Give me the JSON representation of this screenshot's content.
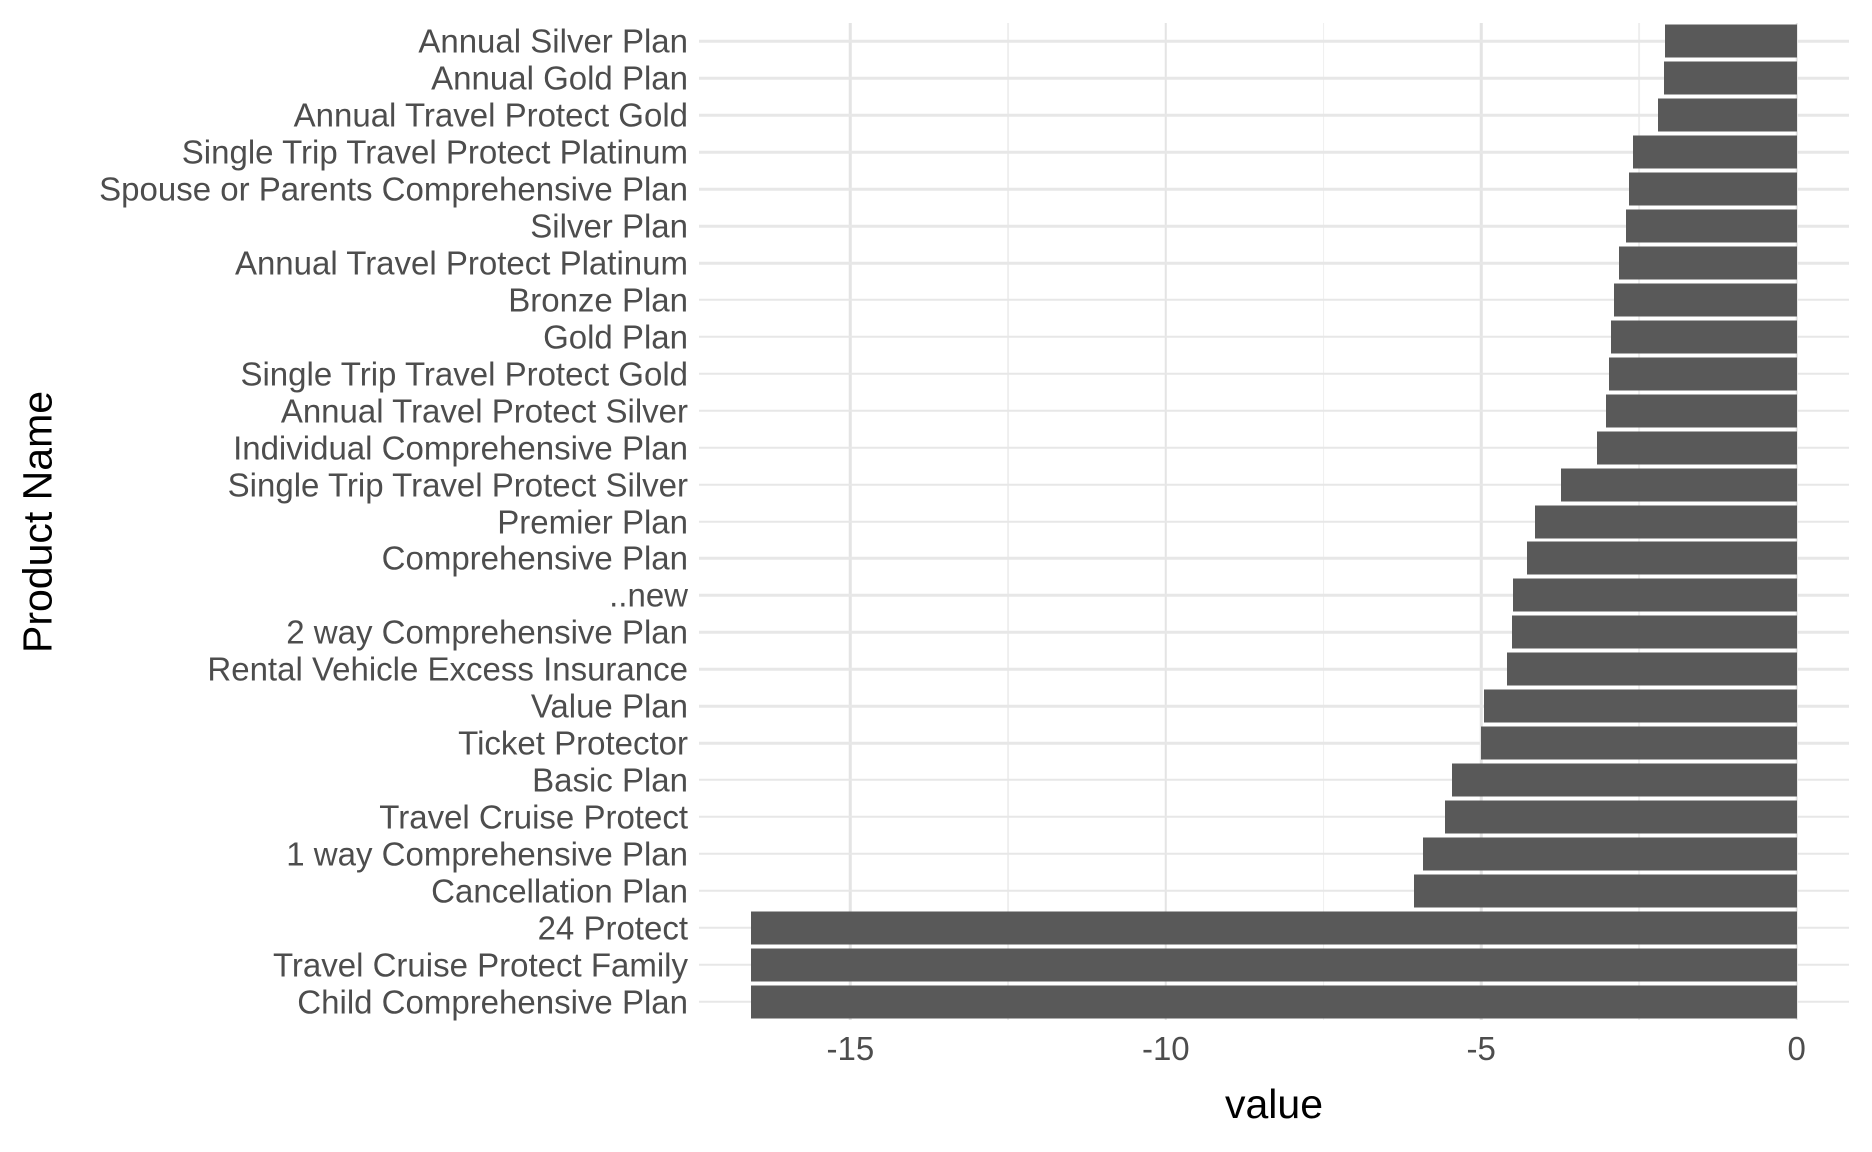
{
  "figure": {
    "background_color": "#ffffff",
    "bar_color": "#595959",
    "axis_text_color": "#4d4d4d",
    "axis_title_color": "#000000",
    "grid_major_color": "#e4e4e4",
    "grid_minor_color": "#eeeeee"
  },
  "chart_data": {
    "type": "bar",
    "orientation": "horizontal",
    "title": "",
    "xlabel": "value",
    "ylabel": "Product Name",
    "grid": "on",
    "legend": "none",
    "xlim": [
      -17.4,
      0.83
    ],
    "x_major_ticks": [
      -15,
      -10,
      -5,
      0
    ],
    "x_major_tick_labels": [
      "-15",
      "-10",
      "-5",
      "0"
    ],
    "x_minor_ticks": [
      -12.5,
      -7.5,
      -2.5
    ],
    "categories": [
      "Annual Silver Plan",
      "Annual Gold Plan",
      "Annual Travel Protect Gold",
      "Single Trip Travel Protect Platinum",
      "Spouse or Parents Comprehensive Plan",
      "Silver Plan",
      "Annual Travel Protect Platinum",
      "Bronze Plan",
      "Gold Plan",
      "Single Trip Travel Protect Gold",
      "Annual Travel Protect Silver",
      "Individual Comprehensive Plan",
      "Single Trip Travel Protect Silver",
      "Premier Plan",
      "Comprehensive Plan",
      "..new",
      "2 way Comprehensive Plan",
      "Rental Vehicle Excess Insurance",
      "Value Plan",
      "Ticket Protector",
      "Basic Plan",
      "Travel Cruise Protect",
      "1 way Comprehensive Plan",
      "Cancellation Plan",
      "24 Protect",
      "Travel Cruise Protect Family",
      "Child Comprehensive Plan"
    ],
    "values": [
      -2.08,
      -2.11,
      -2.2,
      -2.6,
      -2.65,
      -2.7,
      -2.81,
      -2.9,
      -2.94,
      -2.97,
      -3.02,
      -3.16,
      -3.74,
      -4.14,
      -4.27,
      -4.49,
      -4.51,
      -4.59,
      -4.95,
      -5.0,
      -5.47,
      -5.57,
      -5.92,
      -6.06,
      -16.57,
      -16.57,
      -16.57
    ]
  }
}
